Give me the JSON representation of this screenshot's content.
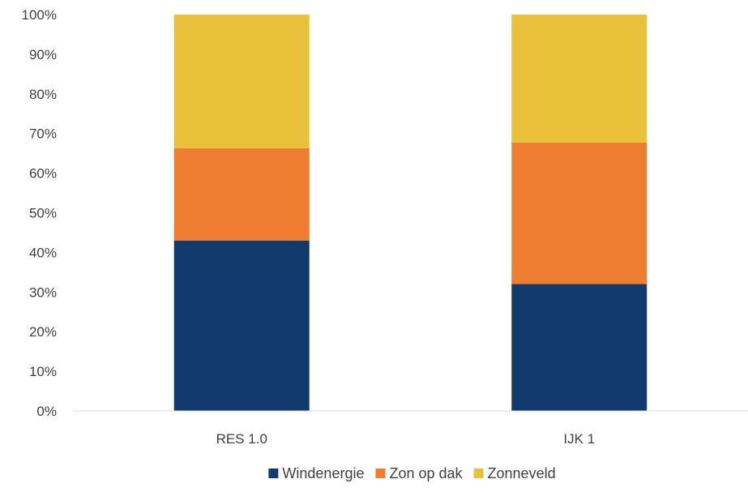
{
  "chart_data": {
    "type": "bar",
    "stacked": true,
    "percent_axis": true,
    "categories": [
      "RES 1.0",
      "IJK 1"
    ],
    "series": [
      {
        "name": "Windenergie",
        "values": [
          43,
          32
        ],
        "color": "#133A6C"
      },
      {
        "name": "Zon op dak",
        "values": [
          23.3,
          35.7
        ],
        "color": "#ED7D31"
      },
      {
        "name": "Zonneveld",
        "values": [
          33.7,
          32.3
        ],
        "color": "#E9C13B"
      }
    ],
    "ylim": [
      0,
      100
    ],
    "yticks": [
      "0%",
      "10%",
      "20%",
      "30%",
      "40%",
      "50%",
      "60%",
      "70%",
      "80%",
      "90%",
      "100%"
    ],
    "title": "",
    "xlabel": "",
    "ylabel": "",
    "grid": false,
    "legend_position": "bottom"
  }
}
